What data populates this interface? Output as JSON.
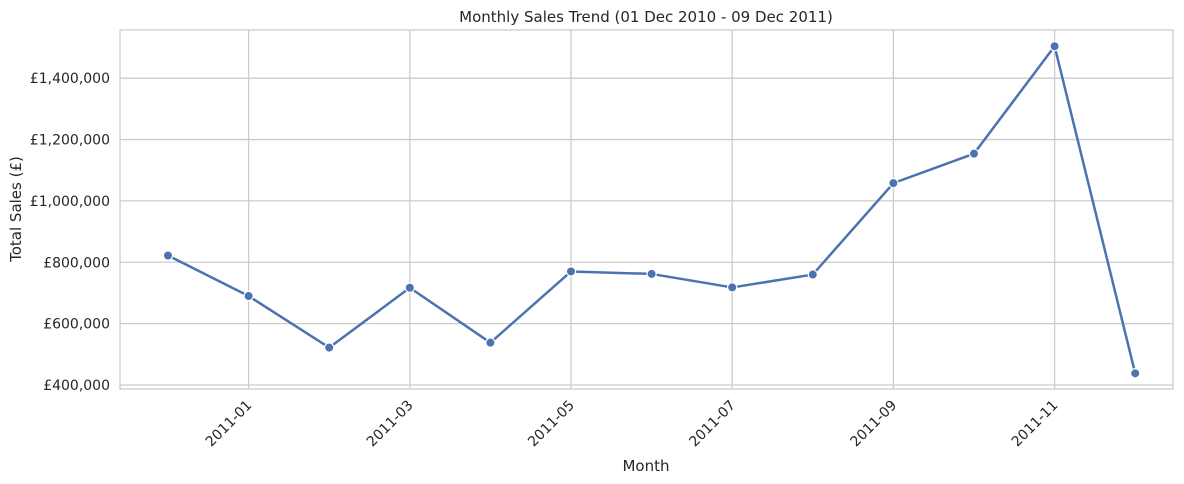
{
  "chart_data": {
    "type": "line",
    "title": "Monthly Sales Trend (01 Dec 2010 - 09 Dec 2011)",
    "xlabel": "Month",
    "ylabel": "Total Sales (£)",
    "x": [
      "2010-12",
      "2011-01",
      "2011-02",
      "2011-03",
      "2011-04",
      "2011-05",
      "2011-06",
      "2011-07",
      "2011-08",
      "2011-09",
      "2011-10",
      "2011-11",
      "2011-12"
    ],
    "values": [
      822000,
      690000,
      522000,
      717000,
      538000,
      770000,
      762000,
      718000,
      760000,
      1058000,
      1154000,
      1504000,
      438000
    ],
    "x_ticks": [
      "2011-01",
      "2011-03",
      "2011-05",
      "2011-07",
      "2011-09",
      "2011-11"
    ],
    "y_ticks": [
      400000,
      600000,
      800000,
      1000000,
      1200000,
      1400000
    ],
    "y_tick_labels": [
      "£400,000",
      "£600,000",
      "£800,000",
      "£1,000,000",
      "£1,200,000",
      "£1,400,000"
    ],
    "ylim": [
      387000,
      1557000
    ],
    "grid": true,
    "marker": "circle",
    "line_color": "#4c72b0",
    "grid_color": "#cccccc"
  }
}
